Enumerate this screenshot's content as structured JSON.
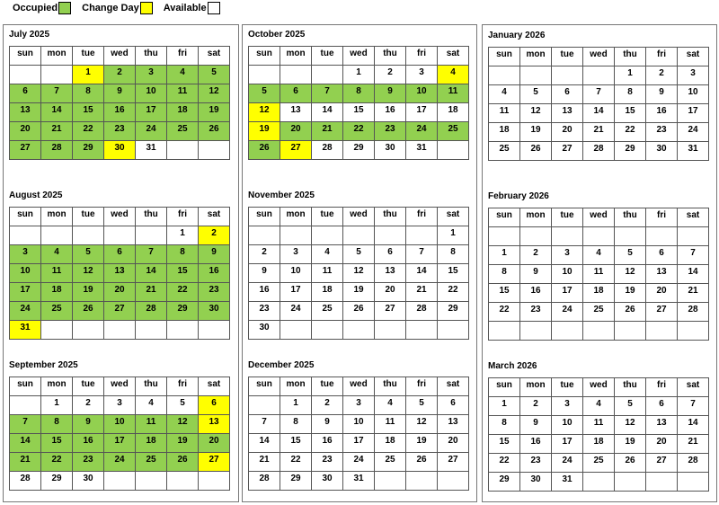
{
  "legend": {
    "items": [
      {
        "label": "Occupied",
        "color": "#92d050"
      },
      {
        "label": "Change Day",
        "color": "#ffff00"
      },
      {
        "label": "Available",
        "color": "#ffffff"
      }
    ]
  },
  "weekdays": [
    "sun",
    "mon",
    "tue",
    "wed",
    "thu",
    "fri",
    "sat"
  ],
  "columns": [
    [
      0,
      1,
      2
    ],
    [
      3,
      4,
      5
    ],
    [
      6,
      7,
      8
    ]
  ],
  "months": [
    {
      "title": "July 2025",
      "weeks": [
        [
          "",
          "",
          "1",
          "2",
          "3",
          "4",
          "5"
        ],
        [
          "6",
          "7",
          "8",
          "9",
          "10",
          "11",
          "12"
        ],
        [
          "13",
          "14",
          "15",
          "16",
          "17",
          "18",
          "19"
        ],
        [
          "20",
          "21",
          "22",
          "23",
          "24",
          "25",
          "26"
        ],
        [
          "27",
          "28",
          "29",
          "30",
          "31",
          "",
          ""
        ]
      ],
      "change_days": [
        1,
        30
      ],
      "occupied_days": [
        2,
        3,
        4,
        5,
        6,
        7,
        8,
        9,
        10,
        11,
        12,
        13,
        14,
        15,
        16,
        17,
        18,
        19,
        20,
        21,
        22,
        23,
        24,
        25,
        26,
        27,
        28,
        29
      ]
    },
    {
      "title": "August 2025",
      "weeks": [
        [
          "",
          "",
          "",
          "",
          "",
          "1",
          "2"
        ],
        [
          "3",
          "4",
          "5",
          "6",
          "7",
          "8",
          "9"
        ],
        [
          "10",
          "11",
          "12",
          "13",
          "14",
          "15",
          "16"
        ],
        [
          "17",
          "18",
          "19",
          "20",
          "21",
          "22",
          "23"
        ],
        [
          "24",
          "25",
          "26",
          "27",
          "28",
          "29",
          "30"
        ],
        [
          "31",
          "",
          "",
          "",
          "",
          "",
          ""
        ]
      ],
      "change_days": [
        2,
        31
      ],
      "occupied_days": [
        3,
        4,
        5,
        6,
        7,
        8,
        9,
        10,
        11,
        12,
        13,
        14,
        15,
        16,
        17,
        18,
        19,
        20,
        21,
        22,
        23,
        24,
        25,
        26,
        27,
        28,
        29,
        30
      ]
    },
    {
      "title": "September 2025",
      "weeks": [
        [
          "",
          "1",
          "2",
          "3",
          "4",
          "5",
          "6"
        ],
        [
          "7",
          "8",
          "9",
          "10",
          "11",
          "12",
          "13"
        ],
        [
          "14",
          "15",
          "16",
          "17",
          "18",
          "19",
          "20"
        ],
        [
          "21",
          "22",
          "23",
          "24",
          "25",
          "26",
          "27"
        ],
        [
          "28",
          "29",
          "30",
          "",
          "",
          "",
          ""
        ]
      ],
      "change_days": [
        6,
        13,
        27
      ],
      "occupied_days": [
        7,
        8,
        9,
        10,
        11,
        12,
        14,
        15,
        16,
        17,
        18,
        19,
        20,
        21,
        22,
        23,
        24,
        25,
        26
      ]
    },
    {
      "title": "October 2025",
      "weeks": [
        [
          "",
          "",
          "",
          "1",
          "2",
          "3",
          "4"
        ],
        [
          "5",
          "6",
          "7",
          "8",
          "9",
          "10",
          "11"
        ],
        [
          "12",
          "13",
          "14",
          "15",
          "16",
          "17",
          "18"
        ],
        [
          "19",
          "20",
          "21",
          "22",
          "23",
          "24",
          "25"
        ],
        [
          "26",
          "27",
          "28",
          "29",
          "30",
          "31",
          ""
        ]
      ],
      "change_days": [
        4,
        12,
        19,
        27
      ],
      "occupied_days": [
        5,
        6,
        7,
        8,
        9,
        10,
        11,
        20,
        21,
        22,
        23,
        24,
        25,
        26
      ]
    },
    {
      "title": "November 2025",
      "weeks": [
        [
          "",
          "",
          "",
          "",
          "",
          "",
          "1"
        ],
        [
          "2",
          "3",
          "4",
          "5",
          "6",
          "7",
          "8"
        ],
        [
          "9",
          "10",
          "11",
          "12",
          "13",
          "14",
          "15"
        ],
        [
          "16",
          "17",
          "18",
          "19",
          "20",
          "21",
          "22"
        ],
        [
          "23",
          "24",
          "25",
          "26",
          "27",
          "28",
          "29"
        ],
        [
          "30",
          "",
          "",
          "",
          "",
          "",
          ""
        ]
      ],
      "change_days": [],
      "occupied_days": []
    },
    {
      "title": "December 2025",
      "weeks": [
        [
          "",
          "1",
          "2",
          "3",
          "4",
          "5",
          "6"
        ],
        [
          "7",
          "8",
          "9",
          "10",
          "11",
          "12",
          "13"
        ],
        [
          "14",
          "15",
          "16",
          "17",
          "18",
          "19",
          "20"
        ],
        [
          "21",
          "22",
          "23",
          "24",
          "25",
          "26",
          "27"
        ],
        [
          "28",
          "29",
          "30",
          "31",
          "",
          "",
          ""
        ]
      ],
      "change_days": [],
      "occupied_days": []
    },
    {
      "title": "January 2026",
      "weeks": [
        [
          "",
          "",
          "",
          "",
          "1",
          "2",
          "3"
        ],
        [
          "4",
          "5",
          "6",
          "7",
          "8",
          "9",
          "10"
        ],
        [
          "11",
          "12",
          "13",
          "14",
          "15",
          "16",
          "17"
        ],
        [
          "18",
          "19",
          "20",
          "21",
          "22",
          "23",
          "24"
        ],
        [
          "25",
          "26",
          "27",
          "28",
          "29",
          "30",
          "31"
        ]
      ],
      "change_days": [],
      "occupied_days": []
    },
    {
      "title": "February 2026",
      "weeks": [
        [
          "",
          "",
          "",
          "",
          "",
          "",
          ""
        ],
        [
          "1",
          "2",
          "3",
          "4",
          "5",
          "6",
          "7"
        ],
        [
          "8",
          "9",
          "10",
          "11",
          "12",
          "13",
          "14"
        ],
        [
          "15",
          "16",
          "17",
          "18",
          "19",
          "20",
          "21"
        ],
        [
          "22",
          "23",
          "24",
          "25",
          "26",
          "27",
          "28"
        ],
        [
          "",
          "",
          "",
          "",
          "",
          "",
          ""
        ]
      ],
      "change_days": [],
      "occupied_days": []
    },
    {
      "title": "March 2026",
      "weeks": [
        [
          "1",
          "2",
          "3",
          "4",
          "5",
          "6",
          "7"
        ],
        [
          "8",
          "9",
          "10",
          "11",
          "12",
          "13",
          "14"
        ],
        [
          "15",
          "16",
          "17",
          "18",
          "19",
          "20",
          "21"
        ],
        [
          "22",
          "23",
          "24",
          "25",
          "26",
          "27",
          "28"
        ],
        [
          "29",
          "30",
          "31",
          "",
          "",
          "",
          ""
        ]
      ],
      "change_days": [],
      "occupied_days": []
    }
  ]
}
